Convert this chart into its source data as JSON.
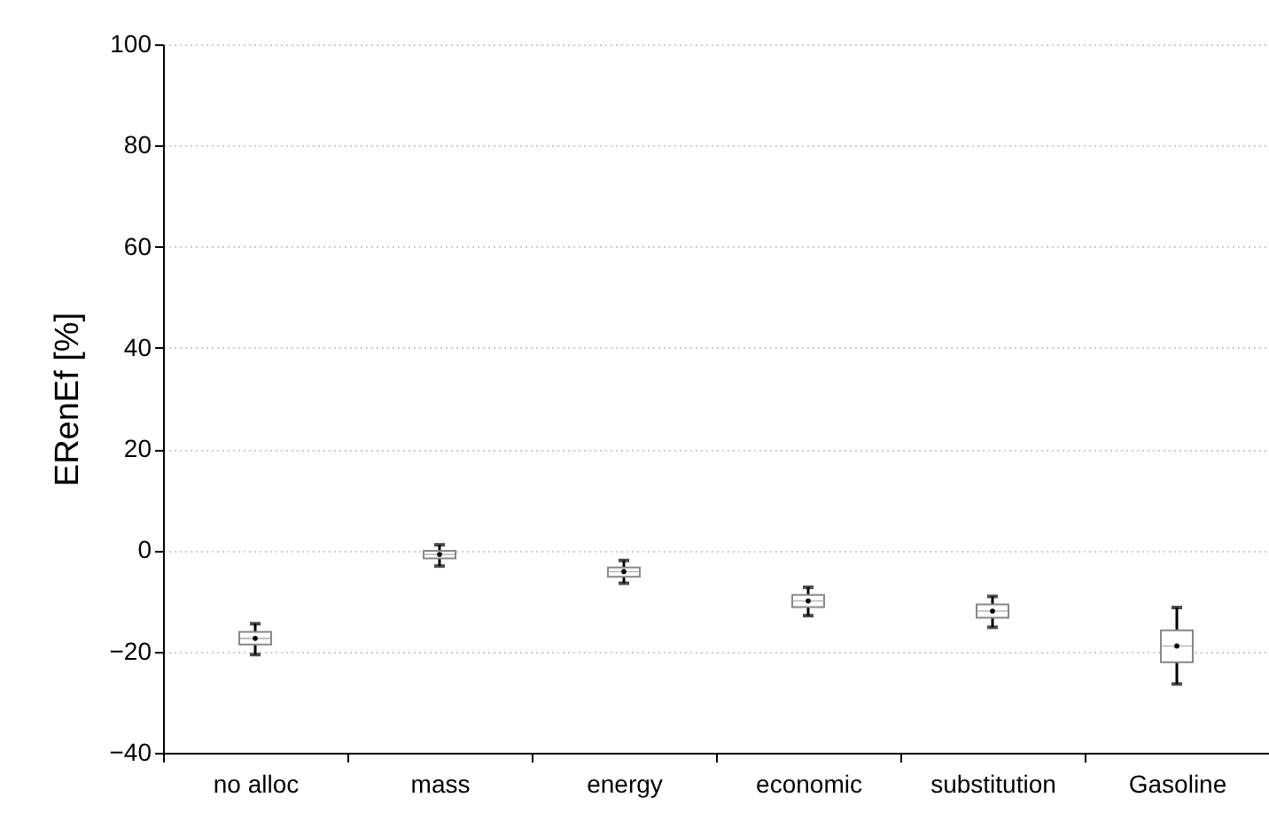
{
  "chart_data": {
    "type": "box",
    "ylabel": "ERenEf [%]",
    "categories": [
      "no alloc",
      "mass",
      "energy",
      "economic",
      "substitution",
      "Gasoline"
    ],
    "boxes": [
      {
        "low": -20.6,
        "q1": -18.6,
        "median": -17.4,
        "q3": -16.1,
        "high": -14.5
      },
      {
        "low": -3.1,
        "q1": -1.6,
        "median": -0.8,
        "q3": -0.1,
        "high": 1.1
      },
      {
        "low": -6.5,
        "q1": -5.2,
        "median": -4.2,
        "q3": -3.4,
        "high": -2.0
      },
      {
        "low": -12.9,
        "q1": -11.2,
        "median": -10.0,
        "q3": -8.8,
        "high": -7.3
      },
      {
        "low": -15.2,
        "q1": -13.3,
        "median": -12.0,
        "q3": -10.7,
        "high": -9.1
      },
      {
        "low": -26.4,
        "q1": -22.1,
        "median": -18.9,
        "q3": -15.8,
        "high": -11.3
      }
    ],
    "ylim": [
      -40,
      100
    ],
    "yticks": [
      -40,
      -20,
      0,
      20,
      40,
      60,
      80,
      100
    ],
    "grid": "y"
  }
}
